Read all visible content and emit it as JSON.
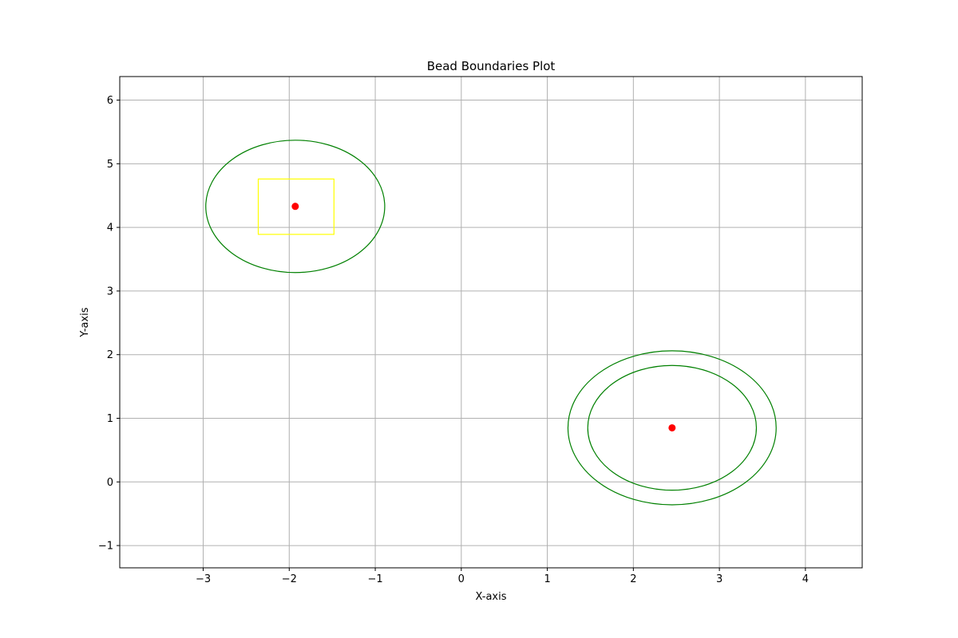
{
  "chart_data": {
    "type": "scatter",
    "title": "Bead Boundaries Plot",
    "xlabel": "X-axis",
    "ylabel": "Y-axis",
    "xlim": [
      -3.97,
      4.66
    ],
    "ylim": [
      -1.35,
      6.37
    ],
    "grid": true,
    "x_ticks": [
      -3,
      -2,
      -1,
      0,
      1,
      2,
      3,
      4
    ],
    "x_tick_labels": [
      "−3",
      "−2",
      "−1",
      "0",
      "1",
      "2",
      "3",
      "4"
    ],
    "y_ticks": [
      -1,
      0,
      1,
      2,
      3,
      4,
      5,
      6
    ],
    "y_tick_labels": [
      "−1",
      "0",
      "1",
      "2",
      "3",
      "4",
      "5",
      "6"
    ],
    "points": [
      {
        "x": -1.93,
        "y": 4.33,
        "color": "#ff0000"
      },
      {
        "x": 2.45,
        "y": 0.85,
        "color": "#ff0000"
      }
    ],
    "ellipses": [
      {
        "cx": -1.93,
        "cy": 4.33,
        "rx": 1.04,
        "ry": 1.04,
        "color": "#008000"
      },
      {
        "cx": 2.45,
        "cy": 0.85,
        "rx": 1.21,
        "ry": 1.21,
        "color": "#008000"
      },
      {
        "cx": 2.45,
        "cy": 0.85,
        "rx": 0.98,
        "ry": 0.98,
        "color": "#008000"
      }
    ],
    "rectangles": [
      {
        "x0": -2.36,
        "y0": 3.89,
        "x1": -1.48,
        "y1": 4.76,
        "color": "#ffff00"
      }
    ]
  }
}
